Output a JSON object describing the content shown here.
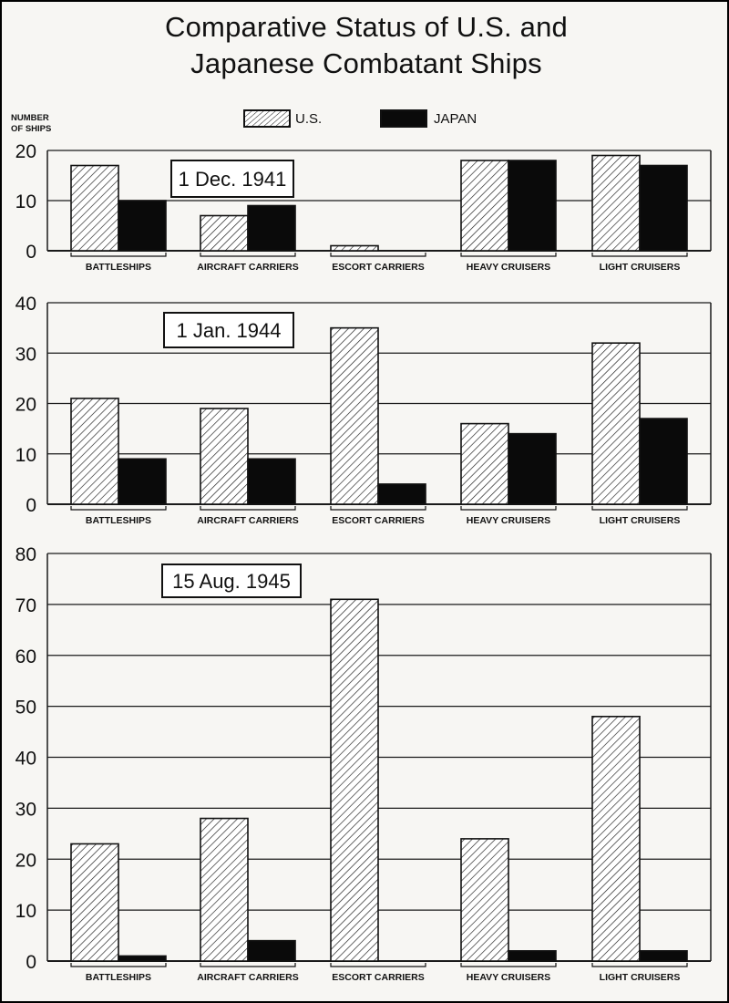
{
  "title": {
    "line1": "Comparative Status of U.S. and",
    "line2": "Japanese Combatant Ships"
  },
  "y_axis_label": {
    "line1": "NUMBER",
    "line2": "OF SHIPS"
  },
  "legend": {
    "us_label": "U.S.",
    "japan_label": "JAPAN"
  },
  "colors": {
    "us_hatch": "#1a1a1a",
    "japan_fill": "#0a0a0a",
    "grid": "#1a1a1a",
    "background": "#f7f6f3"
  },
  "chart_data": [
    {
      "type": "bar",
      "date_label": "1 Dec. 1941",
      "categories": [
        "BATTLESHIPS",
        "AIRCRAFT CARRIERS",
        "ESCORT CARRIERS",
        "HEAVY CRUISERS",
        "LIGHT CRUISERS"
      ],
      "series": [
        {
          "name": "U.S.",
          "values": [
            17,
            7,
            1,
            18,
            19
          ]
        },
        {
          "name": "JAPAN",
          "values": [
            10,
            9,
            0,
            18,
            17
          ]
        }
      ],
      "ylim": [
        0,
        20
      ],
      "yticks": [
        0,
        10,
        20
      ],
      "grid": true
    },
    {
      "type": "bar",
      "date_label": "1 Jan. 1944",
      "categories": [
        "BATTLESHIPS",
        "AIRCRAFT CARRIERS",
        "ESCORT CARRIERS",
        "HEAVY CRUISERS",
        "LIGHT CRUISERS"
      ],
      "series": [
        {
          "name": "U.S.",
          "values": [
            21,
            19,
            35,
            16,
            32
          ]
        },
        {
          "name": "JAPAN",
          "values": [
            9,
            9,
            4,
            14,
            17
          ]
        }
      ],
      "ylim": [
        0,
        40
      ],
      "yticks": [
        0,
        10,
        20,
        30,
        40
      ],
      "grid": true
    },
    {
      "type": "bar",
      "date_label": "15 Aug. 1945",
      "categories": [
        "BATTLESHIPS",
        "AIRCRAFT CARRIERS",
        "ESCORT CARRIERS",
        "HEAVY CRUISERS",
        "LIGHT CRUISERS"
      ],
      "series": [
        {
          "name": "U.S.",
          "values": [
            23,
            28,
            71,
            24,
            48
          ]
        },
        {
          "name": "JAPAN",
          "values": [
            1,
            4,
            0,
            2,
            2
          ]
        }
      ],
      "ylim": [
        0,
        80
      ],
      "yticks": [
        0,
        10,
        20,
        30,
        40,
        50,
        60,
        70,
        80
      ],
      "grid": true
    }
  ]
}
